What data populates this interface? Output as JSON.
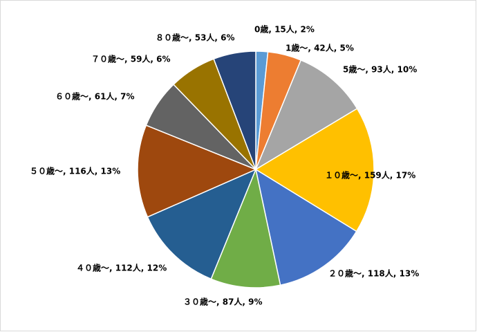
{
  "chart_data": {
    "type": "pie",
    "values": [
      15,
      42,
      93,
      159,
      118,
      87,
      112,
      116,
      61,
      59,
      53
    ],
    "value_labels": [
      "0歳, 15人, 2%",
      "1歳～, 42人, 5%",
      "5歳～, 93人, 10%",
      "１０歳～, 159人, 17%",
      "２０歳～, 118人, 13%",
      "３０歳～, 87人, 9%",
      "４０歳～, 112人, 12%",
      "５０歳～, 116人, 13%",
      "６０歳～, 61人, 7%",
      "７０歳～, 59人, 6%",
      "８０歳～, 53人, 6%"
    ],
    "colors": [
      "#5b9bd5",
      "#ed7d31",
      "#a5a5a5",
      "#ffc000",
      "#4472c4",
      "#70ad47",
      "#255e91",
      "#9e480e",
      "#636363",
      "#997300",
      "#264478"
    ]
  }
}
